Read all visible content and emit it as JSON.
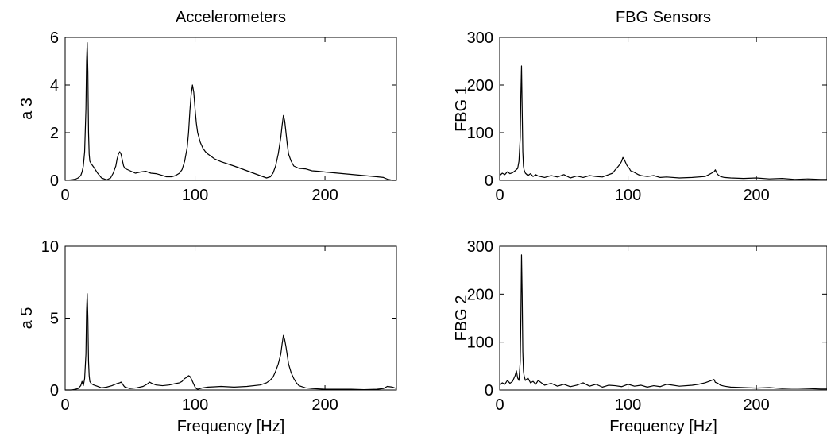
{
  "chart_data": [
    {
      "type": "line",
      "title": "Accelerometers",
      "ylabel": "a 3",
      "xlabel": "",
      "xlim": [
        0,
        255
      ],
      "ylim": [
        0,
        6
      ],
      "xticks": [
        0,
        100,
        200
      ],
      "yticks": [
        0,
        2,
        4,
        6
      ],
      "grid": false,
      "series": [
        {
          "x": [
            0,
            5,
            8,
            10,
            12,
            13,
            14,
            15,
            16,
            16.5,
            17,
            17.5,
            18,
            18.5,
            19,
            20,
            22,
            25,
            28,
            32,
            35,
            37,
            39,
            40,
            41,
            42,
            43,
            44,
            45,
            46,
            48,
            50,
            54,
            58,
            62,
            66,
            70,
            74,
            78,
            82,
            85,
            88,
            90,
            92,
            94,
            95,
            96,
            97,
            98,
            99,
            100,
            101,
            102,
            104,
            106,
            108,
            110,
            115,
            120,
            130,
            140,
            150,
            155,
            158,
            160,
            162,
            164,
            166,
            167,
            168,
            169,
            170,
            171,
            172,
            174,
            176,
            178,
            180,
            185,
            190,
            195,
            200,
            210,
            220,
            230,
            240,
            245,
            248,
            252,
            255
          ],
          "y": [
            0,
            0.02,
            0.05,
            0.1,
            0.2,
            0.35,
            0.6,
            1.2,
            3.0,
            5.0,
            5.78,
            4.5,
            2.0,
            1.1,
            0.8,
            0.7,
            0.55,
            0.3,
            0.1,
            0.02,
            0.1,
            0.3,
            0.6,
            0.9,
            1.1,
            1.2,
            1.1,
            0.85,
            0.6,
            0.5,
            0.45,
            0.4,
            0.3,
            0.35,
            0.38,
            0.3,
            0.28,
            0.22,
            0.15,
            0.15,
            0.2,
            0.3,
            0.45,
            0.8,
            1.4,
            2.0,
            2.9,
            3.6,
            4.0,
            3.7,
            3.0,
            2.4,
            2.0,
            1.6,
            1.35,
            1.2,
            1.1,
            0.9,
            0.78,
            0.6,
            0.4,
            0.2,
            0.1,
            0.15,
            0.3,
            0.6,
            1.1,
            1.8,
            2.3,
            2.72,
            2.5,
            2.0,
            1.5,
            1.1,
            0.8,
            0.6,
            0.55,
            0.5,
            0.48,
            0.4,
            0.38,
            0.35,
            0.3,
            0.25,
            0.2,
            0.15,
            0.12,
            0.05,
            0,
            0
          ]
        }
      ]
    },
    {
      "type": "line",
      "title": "FBG Sensors",
      "ylabel": "FBG 1",
      "xlabel": "",
      "xlim": [
        0,
        255
      ],
      "ylim": [
        0,
        300
      ],
      "xticks": [
        0,
        100,
        200
      ],
      "yticks": [
        0,
        100,
        200,
        300
      ],
      "grid": false,
      "series": [
        {
          "x": [
            0,
            2,
            4,
            6,
            8,
            10,
            12,
            14,
            15,
            16,
            16.5,
            17,
            17.5,
            18,
            18.5,
            19,
            20,
            22,
            24,
            26,
            28,
            30,
            35,
            40,
            45,
            50,
            55,
            60,
            65,
            70,
            75,
            80,
            85,
            88,
            90,
            92,
            94,
            95,
            96,
            97,
            98,
            99,
            100,
            101,
            102,
            104,
            106,
            108,
            110,
            115,
            120,
            125,
            130,
            140,
            150,
            160,
            163,
            165,
            167,
            168,
            169,
            170,
            172,
            175,
            180,
            190,
            200,
            210,
            220,
            230,
            240,
            250,
            255
          ],
          "y": [
            10,
            15,
            12,
            18,
            14,
            16,
            20,
            25,
            40,
            90,
            180,
            240,
            150,
            60,
            30,
            22,
            15,
            10,
            14,
            8,
            12,
            9,
            6,
            10,
            7,
            12,
            5,
            9,
            6,
            10,
            8,
            7,
            12,
            15,
            22,
            28,
            35,
            40,
            48,
            44,
            38,
            32,
            28,
            25,
            20,
            18,
            15,
            12,
            10,
            8,
            10,
            6,
            7,
            5,
            6,
            8,
            12,
            15,
            18,
            22,
            16,
            12,
            8,
            6,
            5,
            4,
            5,
            3,
            4,
            2,
            3,
            2,
            2
          ]
        }
      ]
    },
    {
      "type": "line",
      "title": "",
      "ylabel": "a 5",
      "xlabel": "Frequency [Hz]",
      "xlim": [
        0,
        255
      ],
      "ylim": [
        0,
        10
      ],
      "xticks": [
        0,
        100,
        200
      ],
      "yticks": [
        0,
        5,
        10
      ],
      "grid": false,
      "series": [
        {
          "x": [
            0,
            5,
            8,
            10,
            12,
            13,
            14,
            15,
            16,
            16.5,
            17,
            17.5,
            18,
            18.5,
            19,
            20,
            22,
            25,
            28,
            32,
            36,
            40,
            42,
            43,
            44,
            45,
            46,
            48,
            50,
            55,
            60,
            63,
            65,
            67,
            70,
            75,
            80,
            85,
            88,
            90,
            92,
            94,
            95,
            96,
            97,
            98,
            99,
            100,
            101,
            102,
            104,
            106,
            110,
            115,
            120,
            130,
            140,
            150,
            155,
            158,
            160,
            162,
            164,
            166,
            167,
            168,
            169,
            170,
            171,
            172,
            174,
            176,
            178,
            180,
            185,
            190,
            200,
            210,
            220,
            230,
            240,
            245,
            248,
            252,
            255
          ],
          "y": [
            0,
            0,
            0.05,
            0.1,
            0.3,
            0.6,
            0.3,
            0.8,
            2.5,
            5.5,
            6.7,
            5.0,
            2.0,
            1.0,
            0.6,
            0.45,
            0.35,
            0.25,
            0.15,
            0.2,
            0.3,
            0.45,
            0.5,
            0.55,
            0.45,
            0.3,
            0.2,
            0.15,
            0.1,
            0.15,
            0.25,
            0.4,
            0.55,
            0.45,
            0.35,
            0.3,
            0.35,
            0.45,
            0.5,
            0.6,
            0.8,
            0.9,
            1.0,
            0.95,
            0.8,
            0.6,
            0.4,
            0.2,
            0.1,
            0.05,
            0.1,
            0.15,
            0.2,
            0.22,
            0.25,
            0.2,
            0.25,
            0.35,
            0.5,
            0.7,
            0.9,
            1.3,
            1.8,
            2.5,
            3.2,
            3.8,
            3.5,
            3.0,
            2.4,
            1.8,
            1.2,
            0.8,
            0.5,
            0.3,
            0.15,
            0.1,
            0.05,
            0.05,
            0.05,
            0.02,
            0.05,
            0.1,
            0.25,
            0.2,
            0.1
          ]
        }
      ]
    },
    {
      "type": "line",
      "title": "",
      "ylabel": "FBG 2",
      "xlabel": "Frequency [Hz]",
      "xlim": [
        0,
        255
      ],
      "ylim": [
        0,
        300
      ],
      "xticks": [
        0,
        100,
        200
      ],
      "yticks": [
        0,
        100,
        200,
        300
      ],
      "grid": false,
      "series": [
        {
          "x": [
            0,
            2,
            4,
            6,
            8,
            10,
            12,
            13,
            14,
            15,
            16,
            16.5,
            17,
            17.5,
            18,
            18.5,
            19,
            20,
            22,
            24,
            26,
            28,
            30,
            35,
            40,
            45,
            50,
            55,
            60,
            65,
            70,
            75,
            80,
            85,
            90,
            95,
            100,
            105,
            110,
            115,
            120,
            125,
            130,
            140,
            150,
            155,
            160,
            163,
            165,
            167,
            168,
            170,
            172,
            175,
            180,
            190,
            200,
            210,
            220,
            230,
            240,
            250,
            255
          ],
          "y": [
            10,
            15,
            12,
            20,
            14,
            18,
            30,
            40,
            25,
            20,
            60,
            150,
            282,
            200,
            80,
            40,
            30,
            20,
            25,
            15,
            18,
            12,
            20,
            10,
            14,
            8,
            12,
            7,
            10,
            15,
            8,
            12,
            6,
            10,
            9,
            7,
            12,
            8,
            10,
            6,
            9,
            7,
            12,
            8,
            10,
            12,
            15,
            18,
            20,
            22,
            16,
            14,
            10,
            8,
            6,
            5,
            4,
            5,
            3,
            4,
            3,
            2,
            2
          ]
        }
      ]
    }
  ]
}
